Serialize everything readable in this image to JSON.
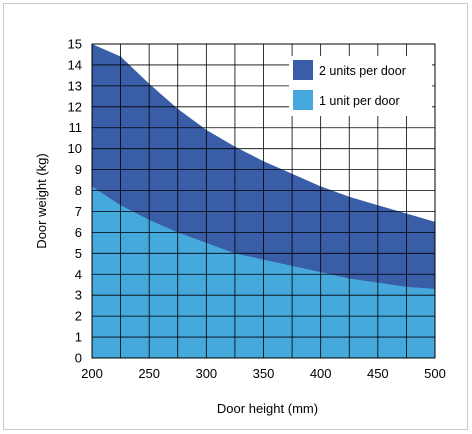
{
  "chart_data": {
    "type": "area",
    "xlabel": "Door height (mm)",
    "ylabel": "Door weight (kg)",
    "xlim": [
      200,
      500
    ],
    "ylim": [
      0,
      15
    ],
    "x_ticks": [
      "200",
      "250",
      "300",
      "350",
      "400",
      "450",
      "500"
    ],
    "y_ticks": [
      "0",
      "1",
      "2",
      "3",
      "4",
      "5",
      "6",
      "7",
      "8",
      "9",
      "10",
      "11",
      "12",
      "13",
      "14",
      "15"
    ],
    "grid": true,
    "legend_position": "top-right",
    "x": [
      200,
      225,
      250,
      275,
      300,
      325,
      350,
      375,
      400,
      425,
      450,
      475,
      500
    ],
    "series": [
      {
        "name": "2 units per door",
        "color": "#3a5da8",
        "values": [
          15.0,
          14.4,
          13.1,
          11.9,
          10.9,
          10.1,
          9.4,
          8.8,
          8.2,
          7.7,
          7.3,
          6.9,
          6.5
        ]
      },
      {
        "name": "1 unit per door",
        "color": "#46a9dc",
        "values": [
          8.2,
          7.3,
          6.6,
          6.0,
          5.5,
          5.0,
          4.7,
          4.4,
          4.1,
          3.8,
          3.6,
          3.4,
          3.3
        ]
      }
    ]
  }
}
